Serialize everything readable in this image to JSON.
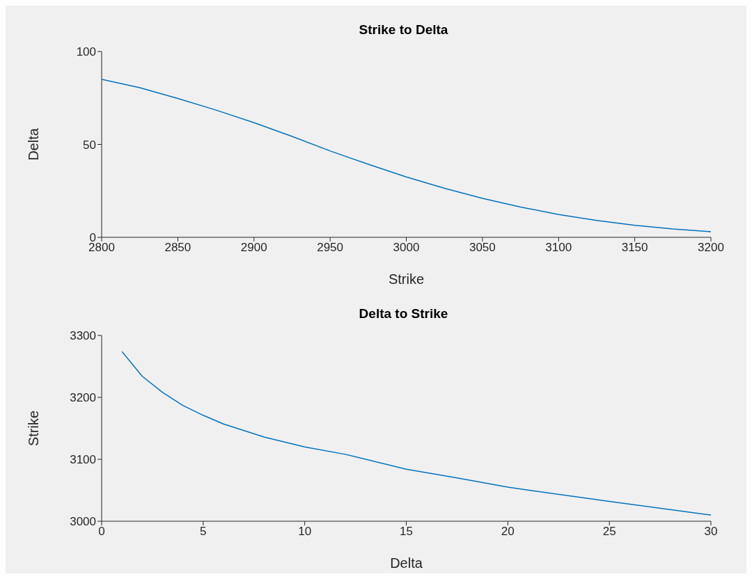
{
  "chart_data": [
    {
      "type": "line",
      "title": "Strike to Delta",
      "xlabel": "Strike",
      "ylabel": "Delta",
      "x": [
        2800,
        2825,
        2850,
        2875,
        2900,
        2925,
        2950,
        2975,
        3000,
        3025,
        3050,
        3075,
        3100,
        3125,
        3150,
        3175,
        3200
      ],
      "series": [
        {
          "color": "#0072bd",
          "values": [
            85,
            80.5,
            74.7,
            68.5,
            61.7,
            54.3,
            46.5,
            39.3,
            32.5,
            26.4,
            21,
            16.3,
            12.3,
            9.1,
            6.5,
            4.5,
            3
          ]
        }
      ],
      "xlim": [
        2800,
        3200
      ],
      "ylim": [
        0,
        100
      ],
      "xticks": [
        2800,
        2850,
        2900,
        2950,
        3000,
        3050,
        3100,
        3150,
        3200
      ],
      "yticks": [
        0,
        50,
        100
      ]
    },
    {
      "type": "line",
      "title": "Delta to Strike",
      "xlabel": "Delta",
      "ylabel": "Strike",
      "x": [
        1,
        2,
        3,
        4,
        5,
        6,
        8,
        10,
        12,
        15,
        17.5,
        20,
        25,
        30
      ],
      "series": [
        {
          "color": "#0072bd",
          "values": [
            3274,
            3234,
            3208,
            3187,
            3171,
            3157,
            3136,
            3120,
            3108,
            3084,
            3070,
            3055,
            3032,
            3010
          ]
        }
      ],
      "xlim": [
        0,
        30
      ],
      "ylim": [
        3000,
        3300
      ],
      "xticks": [
        0,
        5,
        10,
        15,
        20,
        25,
        30
      ],
      "yticks": [
        3000,
        3100,
        3200,
        3300
      ]
    }
  ]
}
